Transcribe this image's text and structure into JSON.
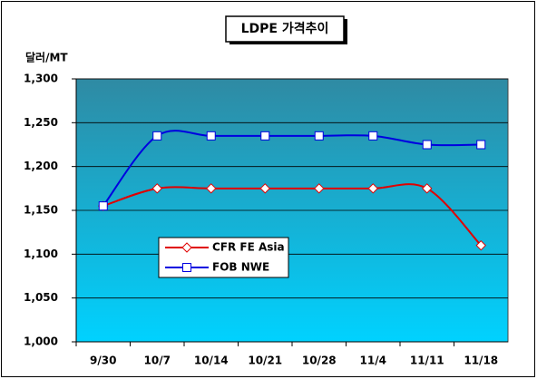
{
  "chart_data": {
    "type": "line",
    "title": "LDPE 가격추이",
    "y_label": "달러/MT",
    "categories": [
      "9/30",
      "10/7",
      "10/14",
      "10/21",
      "10/28",
      "11/4",
      "11/11",
      "11/18"
    ],
    "series": [
      {
        "name": "CFR FE Asia",
        "color": "#e00000",
        "marker": "diamond",
        "values": [
          1155,
          1175,
          1175,
          1175,
          1175,
          1175,
          1175,
          1110
        ]
      },
      {
        "name": "FOB NWE",
        "color": "#0000e0",
        "marker": "square",
        "values": [
          1155,
          1235,
          1235,
          1235,
          1235,
          1235,
          1225,
          1225
        ]
      }
    ],
    "ylim": [
      1000,
      1300
    ],
    "yticks": [
      {
        "value": 1000,
        "label": "1,000"
      },
      {
        "value": 1050,
        "label": "1,050"
      },
      {
        "value": 1100,
        "label": "1,100"
      },
      {
        "value": 1150,
        "label": "1,150"
      },
      {
        "value": 1200,
        "label": "1,200"
      },
      {
        "value": 1250,
        "label": "1,250"
      },
      {
        "value": 1300,
        "label": "1,300"
      }
    ],
    "grid": true
  }
}
